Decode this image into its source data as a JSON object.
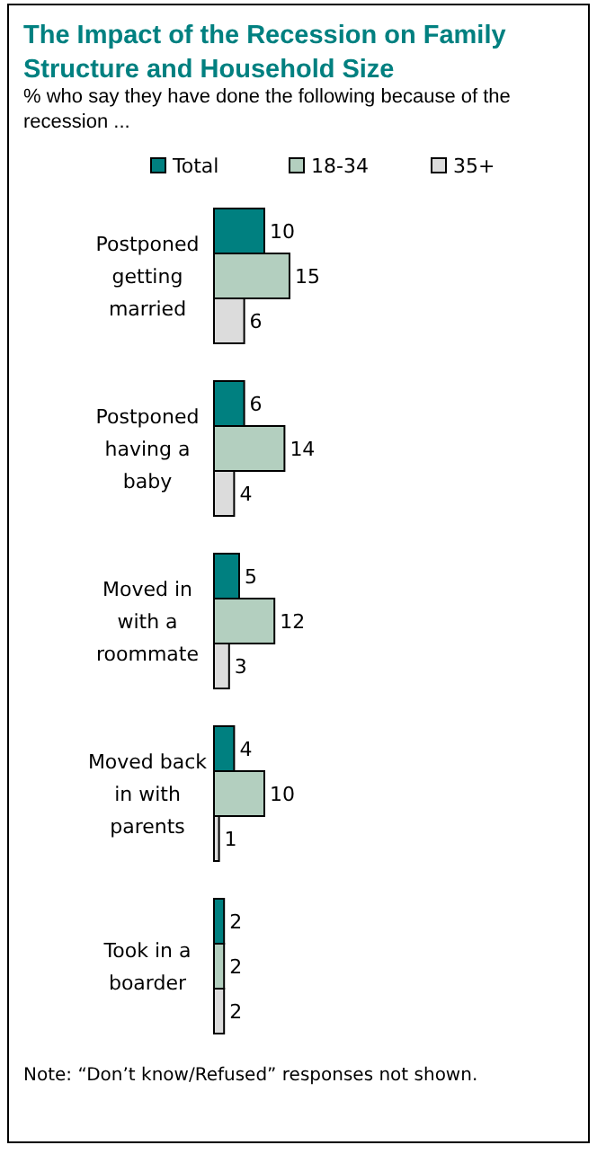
{
  "chart_data": {
    "type": "bar",
    "orientation": "horizontal",
    "title": "The Impact of the Recession on Family Structure and Household Size",
    "subtitle": "% who say they have done the following because of the recession ...",
    "categories": [
      "Postponed getting married",
      "Postponed having a baby",
      "Moved in with a roommate",
      "Moved back in with parents",
      "Took in a boarder"
    ],
    "series": [
      {
        "name": "Total",
        "color": "#008080",
        "values": [
          10,
          6,
          5,
          4,
          2
        ]
      },
      {
        "name": "18-34",
        "color": "#b3cfbf",
        "values": [
          15,
          14,
          12,
          10,
          2
        ]
      },
      {
        "name": "35+",
        "color": "#dcdcdc",
        "values": [
          6,
          4,
          3,
          1,
          2
        ]
      }
    ],
    "data_labels": true,
    "legend": "top",
    "tick_labels": "y",
    "annotations": [
      "Note: “Don’t know/Refused” responses not shown."
    ]
  }
}
